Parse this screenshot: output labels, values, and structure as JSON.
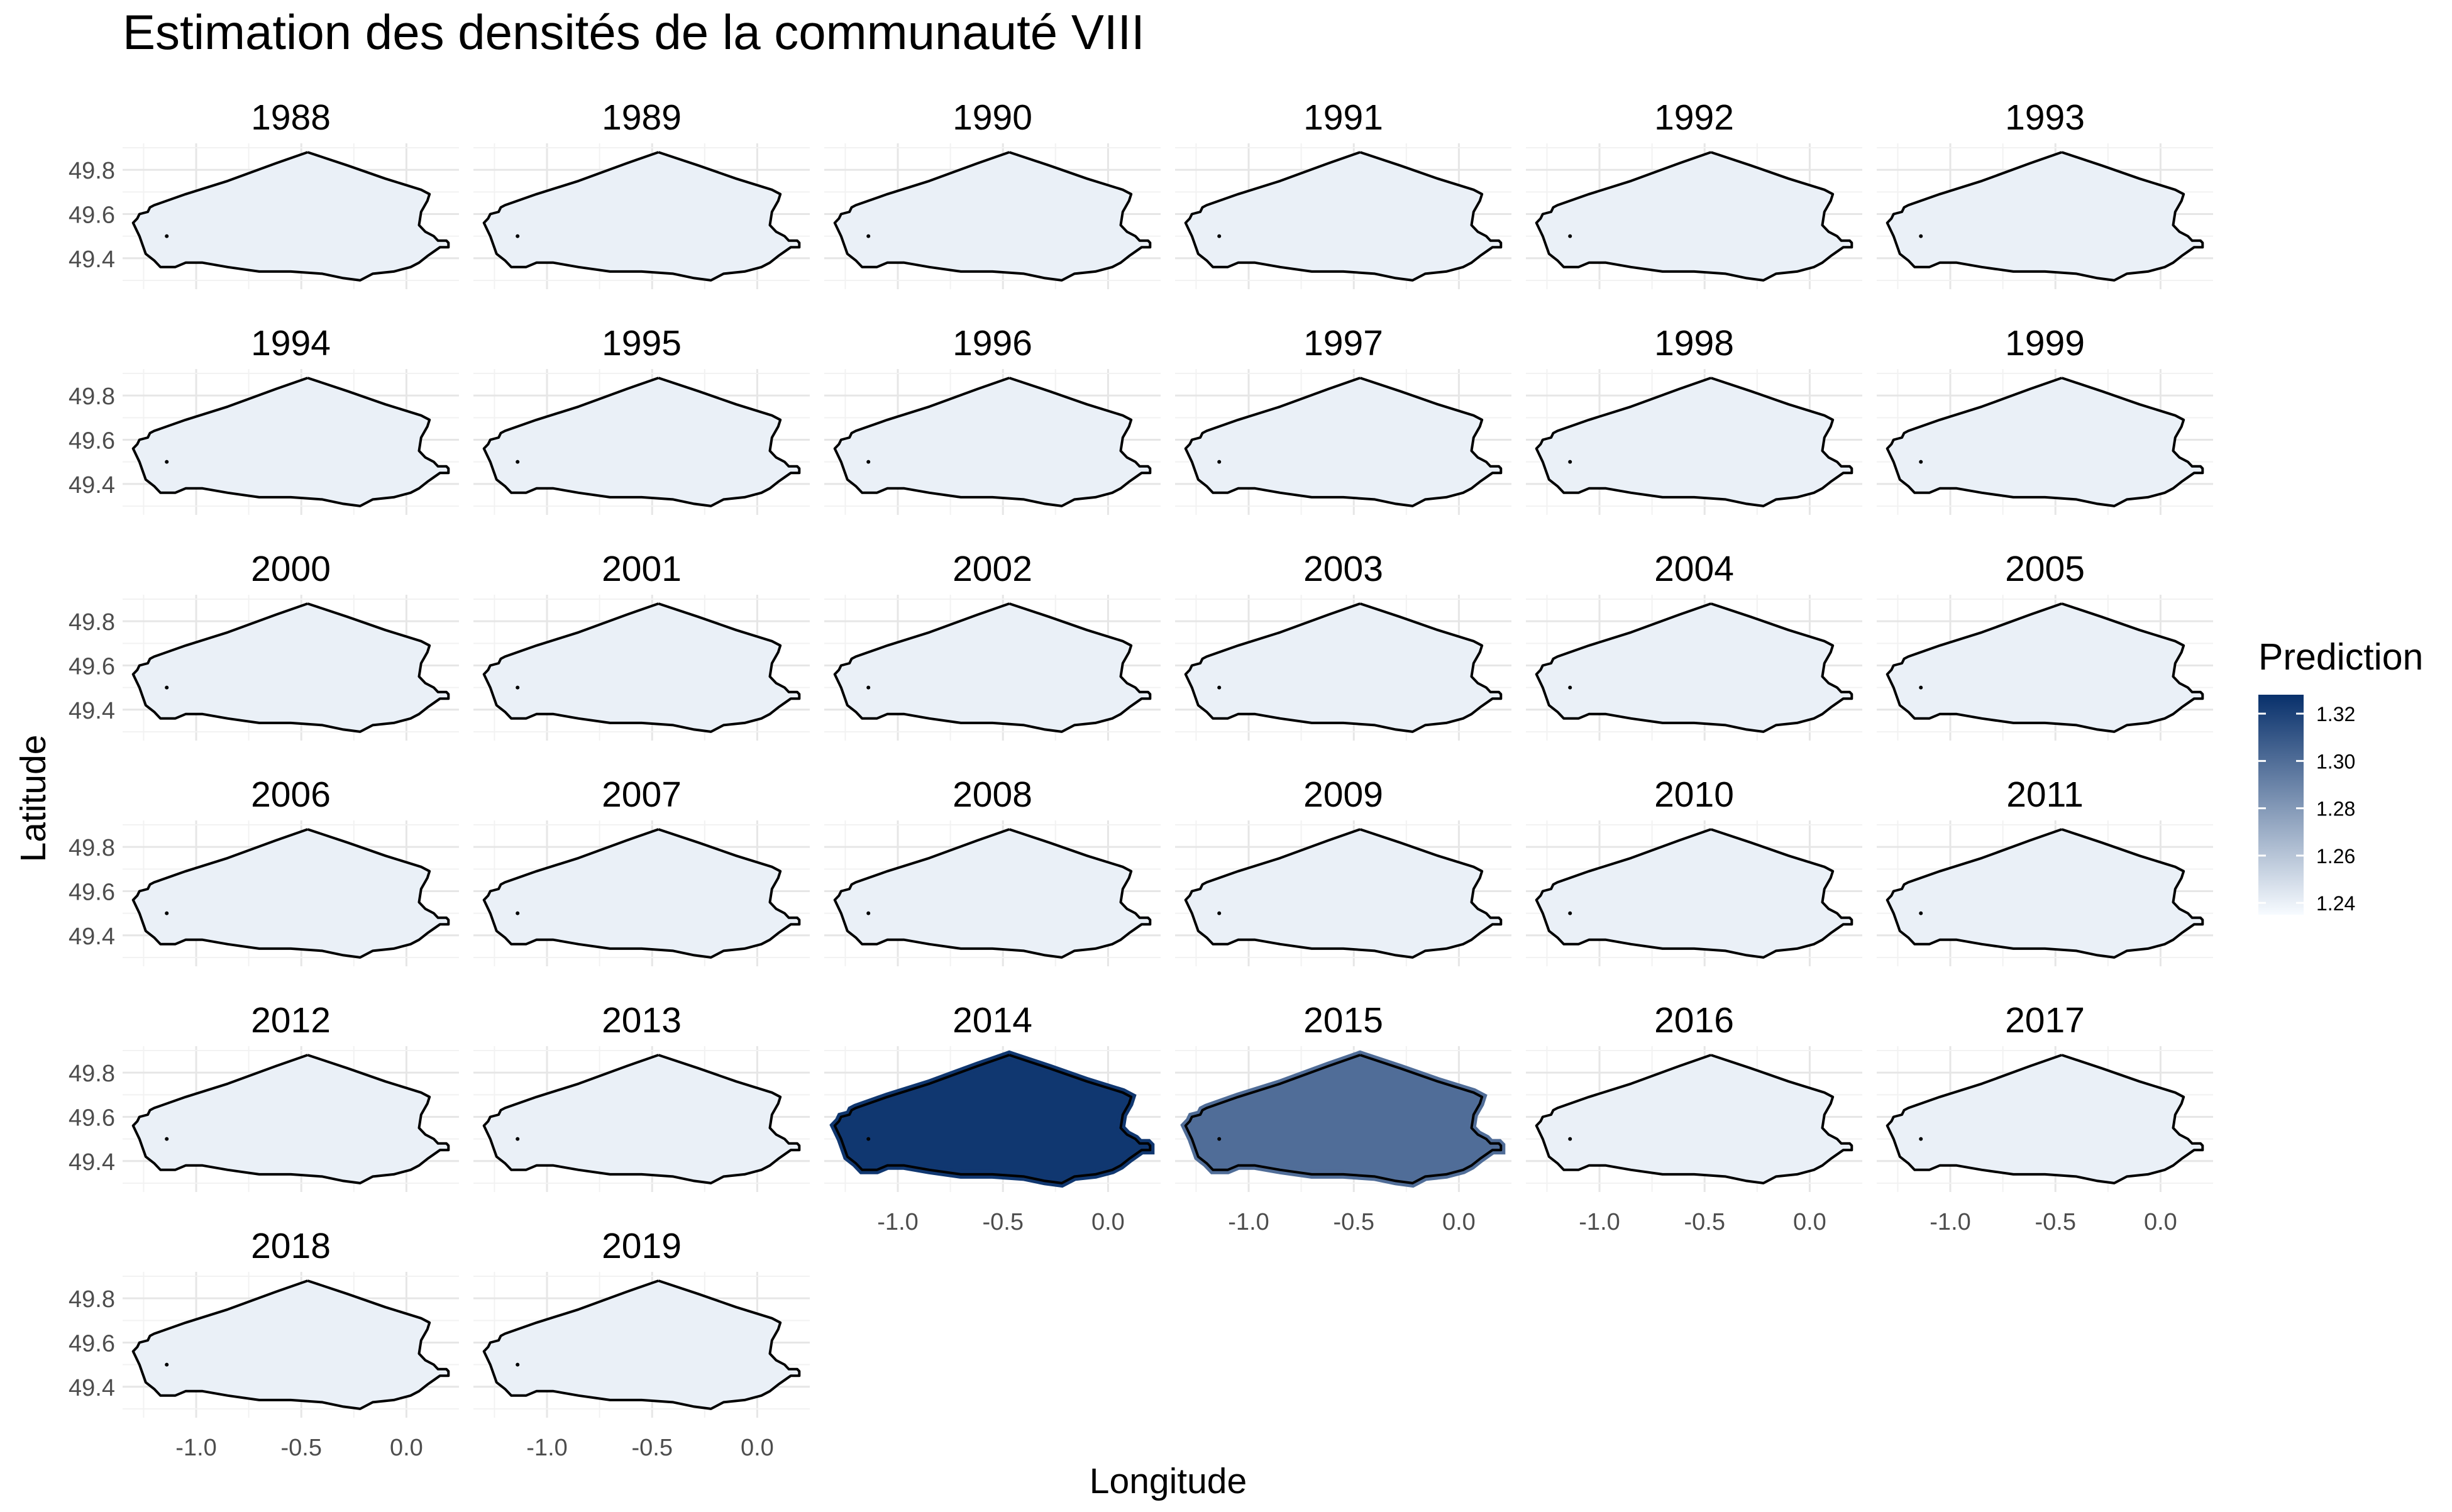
{
  "chart_data": {
    "type": "heatmap",
    "title": "Estimation des densités de la communauté VIII",
    "xlabel": "Longitude",
    "ylabel": "Latitude",
    "xlim": [
      -1.35,
      0.25
    ],
    "ylim": [
      49.26,
      49.92
    ],
    "x_ticks": [
      -1.0,
      -0.5,
      0.0
    ],
    "x_tick_labels": [
      "-1.0",
      "-0.5",
      "0.0"
    ],
    "y_ticks": [
      49.4,
      49.6,
      49.8
    ],
    "y_tick_labels": [
      "49.4",
      "49.6",
      "49.8"
    ],
    "grid": true,
    "facets": [
      {
        "year": "1988",
        "prediction": 1.24
      },
      {
        "year": "1989",
        "prediction": 1.24
      },
      {
        "year": "1990",
        "prediction": 1.24
      },
      {
        "year": "1991",
        "prediction": 1.24
      },
      {
        "year": "1992",
        "prediction": 1.24
      },
      {
        "year": "1993",
        "prediction": 1.24
      },
      {
        "year": "1994",
        "prediction": 1.24
      },
      {
        "year": "1995",
        "prediction": 1.24
      },
      {
        "year": "1996",
        "prediction": 1.24
      },
      {
        "year": "1997",
        "prediction": 1.24
      },
      {
        "year": "1998",
        "prediction": 1.24
      },
      {
        "year": "1999",
        "prediction": 1.24
      },
      {
        "year": "2000",
        "prediction": 1.24
      },
      {
        "year": "2001",
        "prediction": 1.24
      },
      {
        "year": "2002",
        "prediction": 1.24
      },
      {
        "year": "2003",
        "prediction": 1.24
      },
      {
        "year": "2004",
        "prediction": 1.24
      },
      {
        "year": "2005",
        "prediction": 1.24
      },
      {
        "year": "2006",
        "prediction": 1.24
      },
      {
        "year": "2007",
        "prediction": 1.24
      },
      {
        "year": "2008",
        "prediction": 1.24
      },
      {
        "year": "2009",
        "prediction": 1.24
      },
      {
        "year": "2010",
        "prediction": 1.24
      },
      {
        "year": "2011",
        "prediction": 1.24
      },
      {
        "year": "2012",
        "prediction": 1.24
      },
      {
        "year": "2013",
        "prediction": 1.24
      },
      {
        "year": "2014",
        "prediction": 1.325
      },
      {
        "year": "2015",
        "prediction": 1.3
      },
      {
        "year": "2016",
        "prediction": 1.24
      },
      {
        "year": "2017",
        "prediction": 1.24
      },
      {
        "year": "2018",
        "prediction": 1.24
      },
      {
        "year": "2019",
        "prediction": 1.24
      }
    ],
    "outline": [
      [
        -0.47,
        49.88
      ],
      [
        -0.28,
        49.82
      ],
      [
        -0.1,
        49.76
      ],
      [
        0.07,
        49.71
      ],
      [
        0.11,
        49.69
      ],
      [
        0.1,
        49.66
      ],
      [
        0.07,
        49.61
      ],
      [
        0.06,
        49.55
      ],
      [
        0.09,
        49.52
      ],
      [
        0.13,
        49.5
      ],
      [
        0.15,
        49.48
      ],
      [
        0.19,
        49.48
      ],
      [
        0.2,
        49.47
      ],
      [
        0.2,
        49.45
      ],
      [
        0.16,
        49.45
      ],
      [
        0.13,
        49.43
      ],
      [
        0.1,
        49.41
      ],
      [
        0.06,
        49.38
      ],
      [
        0.02,
        49.36
      ],
      [
        -0.06,
        49.34
      ],
      [
        -0.16,
        49.33
      ],
      [
        -0.22,
        49.3
      ],
      [
        -0.3,
        49.31
      ],
      [
        -0.4,
        49.33
      ],
      [
        -0.55,
        49.34
      ],
      [
        -0.7,
        49.34
      ],
      [
        -0.85,
        49.36
      ],
      [
        -0.97,
        49.38
      ],
      [
        -1.05,
        49.38
      ],
      [
        -1.1,
        49.36
      ],
      [
        -1.17,
        49.36
      ],
      [
        -1.2,
        49.39
      ],
      [
        -1.24,
        49.42
      ],
      [
        -1.27,
        49.5
      ],
      [
        -1.29,
        49.54
      ],
      [
        -1.3,
        49.56
      ],
      [
        -1.28,
        49.58
      ],
      [
        -1.27,
        49.6
      ],
      [
        -1.23,
        49.61
      ],
      [
        -1.22,
        49.63
      ],
      [
        -1.2,
        49.64
      ],
      [
        -1.05,
        49.69
      ],
      [
        -0.85,
        49.75
      ],
      [
        -0.62,
        49.83
      ],
      [
        -0.47,
        49.88
      ]
    ],
    "legend": {
      "title": "Prediction",
      "position": "right",
      "min": 1.235,
      "max": 1.328,
      "ticks": [
        1.32,
        1.3,
        1.28,
        1.26,
        1.24
      ],
      "tick_labels": [
        "1.32",
        "1.30",
        "1.28",
        "1.26",
        "1.24"
      ],
      "low_color": "#f7fbff",
      "high_color": "#08306b"
    }
  }
}
